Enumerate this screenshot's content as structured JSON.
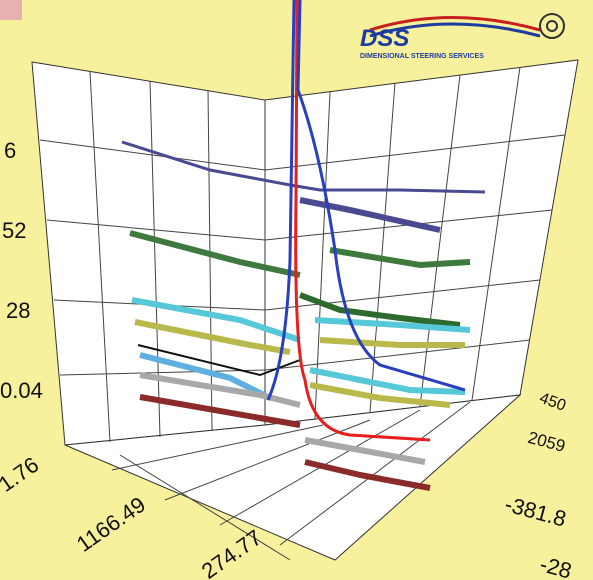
{
  "logo": {
    "title": "DSS",
    "subtitle": "DIMENSIONAL STEERING SERVICES"
  },
  "vertical_axis_labels": [
    "6",
    "52",
    "28",
    "0.04"
  ],
  "left_axis_labels": [
    "1.76",
    "1166.49",
    "274.77"
  ],
  "right_axis_labels": [
    "450",
    "2059",
    "-381.8",
    "-28"
  ]
}
